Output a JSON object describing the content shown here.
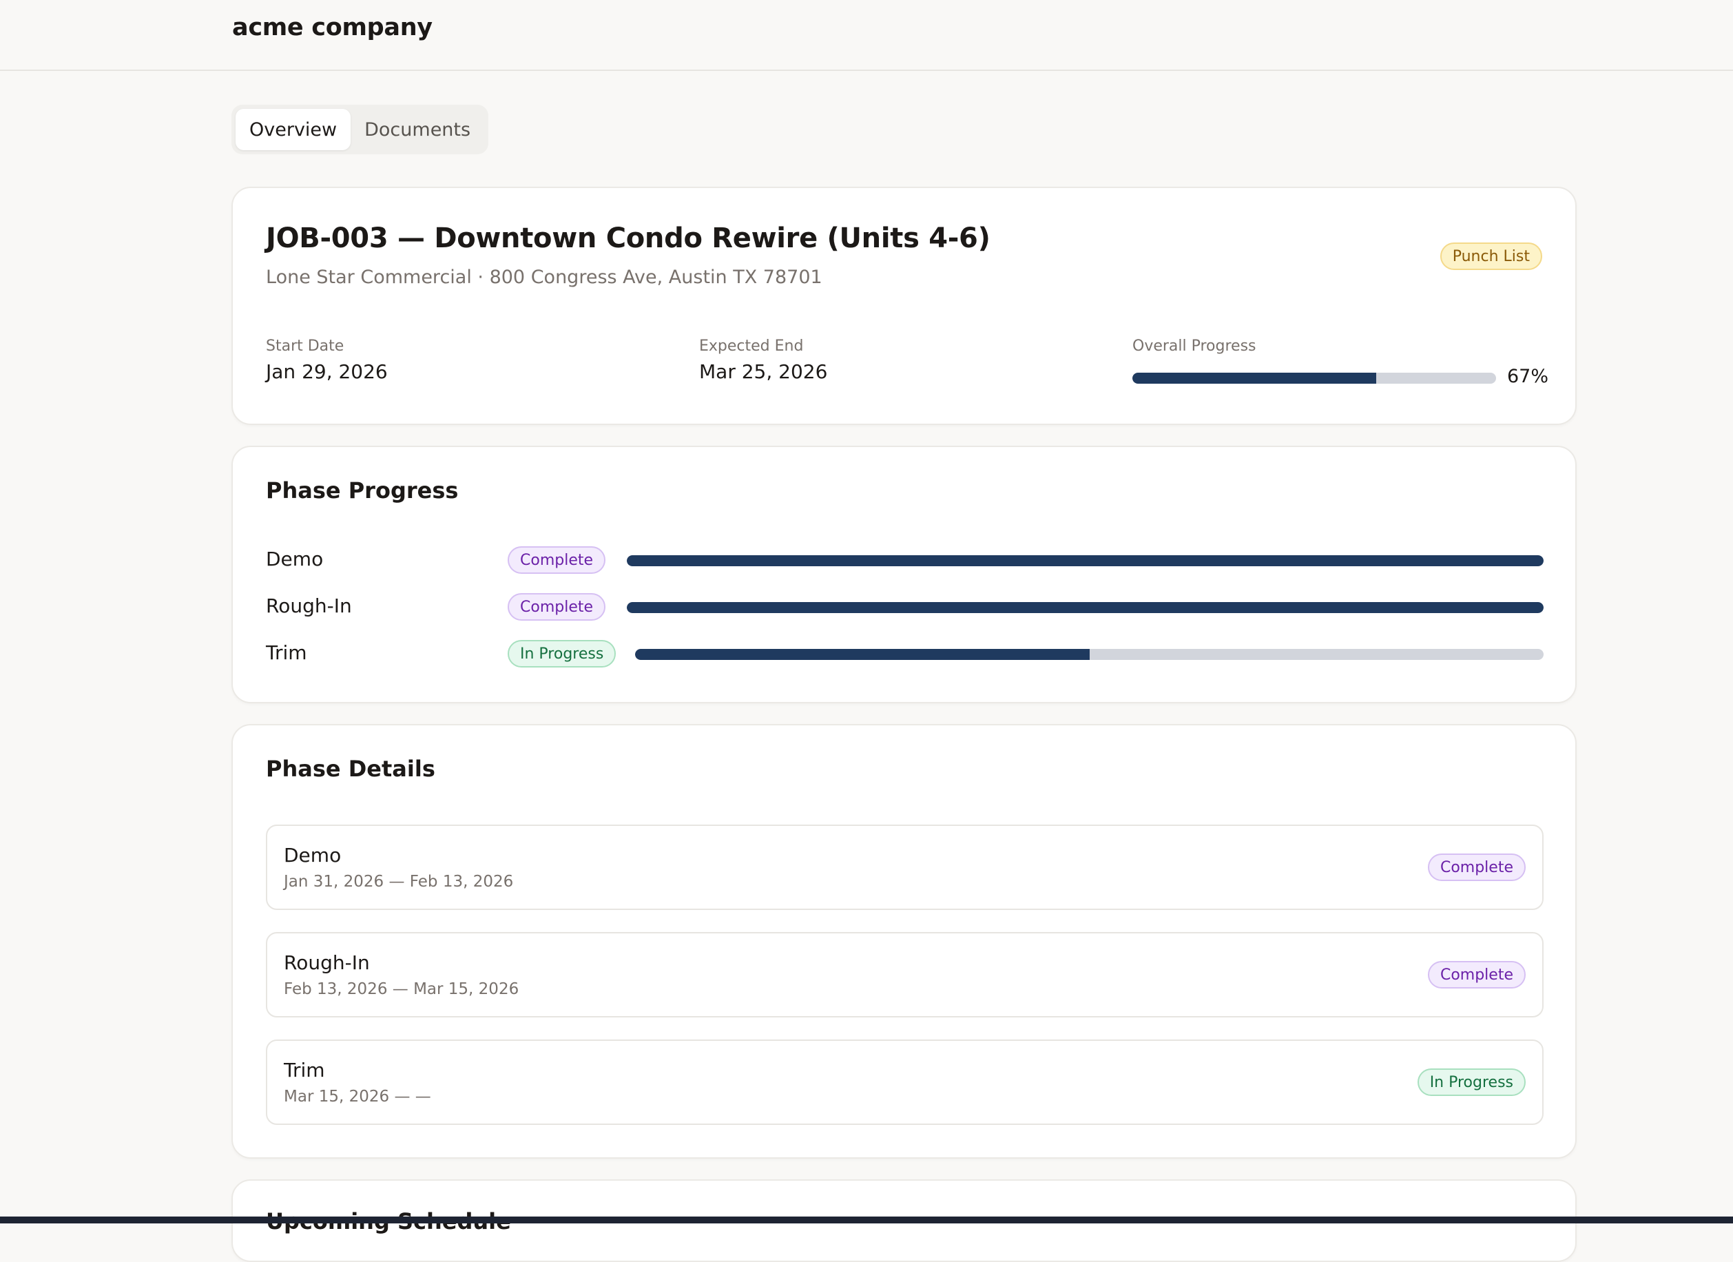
{
  "header": {
    "brand": "acme company"
  },
  "tabs": [
    {
      "label": "Overview",
      "active": true
    },
    {
      "label": "Documents",
      "active": false
    }
  ],
  "job": {
    "title": "JOB-003 — Downtown Condo Rewire (Units 4-6)",
    "subtitle": "Lone Star Commercial · 800 Congress Ave, Austin TX 78701",
    "status_badge": "Punch List",
    "start_date_label": "Start Date",
    "start_date": "Jan 29, 2026",
    "expected_end_label": "Expected End",
    "expected_end": "Mar 25, 2026",
    "overall_progress_label": "Overall Progress",
    "overall_progress_percent": 67,
    "overall_progress_text": "67%"
  },
  "phase_progress": {
    "title": "Phase Progress",
    "phases": [
      {
        "name": "Demo",
        "status": "Complete",
        "progress": 1.0
      },
      {
        "name": "Rough-In",
        "status": "Complete",
        "progress": 1.0
      },
      {
        "name": "Trim",
        "status": "In Progress",
        "progress": 0.5
      }
    ]
  },
  "phase_details": {
    "title": "Phase Details",
    "rows": [
      {
        "name": "Demo",
        "dates": "Jan 31, 2026 — Feb 13, 2026",
        "status": "Complete"
      },
      {
        "name": "Rough-In",
        "dates": "Feb 13, 2026 — Mar 15, 2026",
        "status": "Complete"
      },
      {
        "name": "Trim",
        "dates": "Mar 15, 2026 — —",
        "status": "In Progress"
      }
    ]
  },
  "upcoming": {
    "title": "Upcoming Schedule"
  },
  "colors": {
    "accent_bar": "#1f3a5f",
    "bar_track": "#d2d5dc",
    "complete_badge": "#6b21a8",
    "in_progress_badge": "#15703f",
    "punch_list_badge": "#8a5a08"
  }
}
